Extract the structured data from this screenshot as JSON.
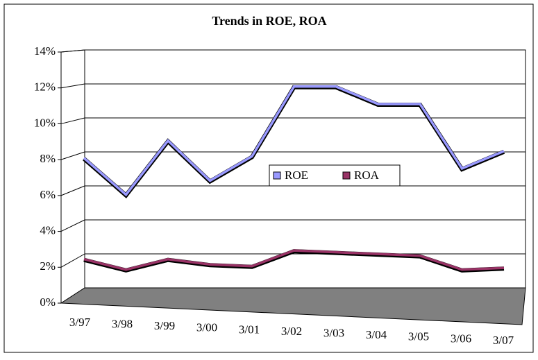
{
  "chart_data": {
    "type": "line",
    "title": "Trends in ROE, ROA",
    "categories": [
      "3/97",
      "3/98",
      "3/99",
      "3/00",
      "3/01",
      "3/02",
      "3/03",
      "3/04",
      "3/05",
      "3/06",
      "3/07"
    ],
    "series": [
      {
        "name": "ROE",
        "color": "#9999ff",
        "values": [
          7.8,
          5.7,
          8.8,
          6.5,
          7.9,
          11.9,
          11.9,
          10.9,
          10.9,
          7.2,
          8.2
        ]
      },
      {
        "name": "ROA",
        "color": "#993366",
        "values": [
          2.0,
          1.4,
          2.0,
          1.7,
          1.6,
          2.5,
          2.4,
          2.3,
          2.2,
          1.4,
          1.5
        ]
      }
    ],
    "ylim": [
      0,
      14
    ],
    "yticks": [
      {
        "value": 0,
        "label": "0%"
      },
      {
        "value": 2,
        "label": "2%"
      },
      {
        "value": 4,
        "label": "4%"
      },
      {
        "value": 6,
        "label": "6%"
      },
      {
        "value": 8,
        "label": "8%"
      },
      {
        "value": 10,
        "label": "10%"
      },
      {
        "value": 12,
        "label": "12%"
      },
      {
        "value": 14,
        "label": "14%"
      }
    ],
    "grid": true,
    "legend": "center"
  }
}
